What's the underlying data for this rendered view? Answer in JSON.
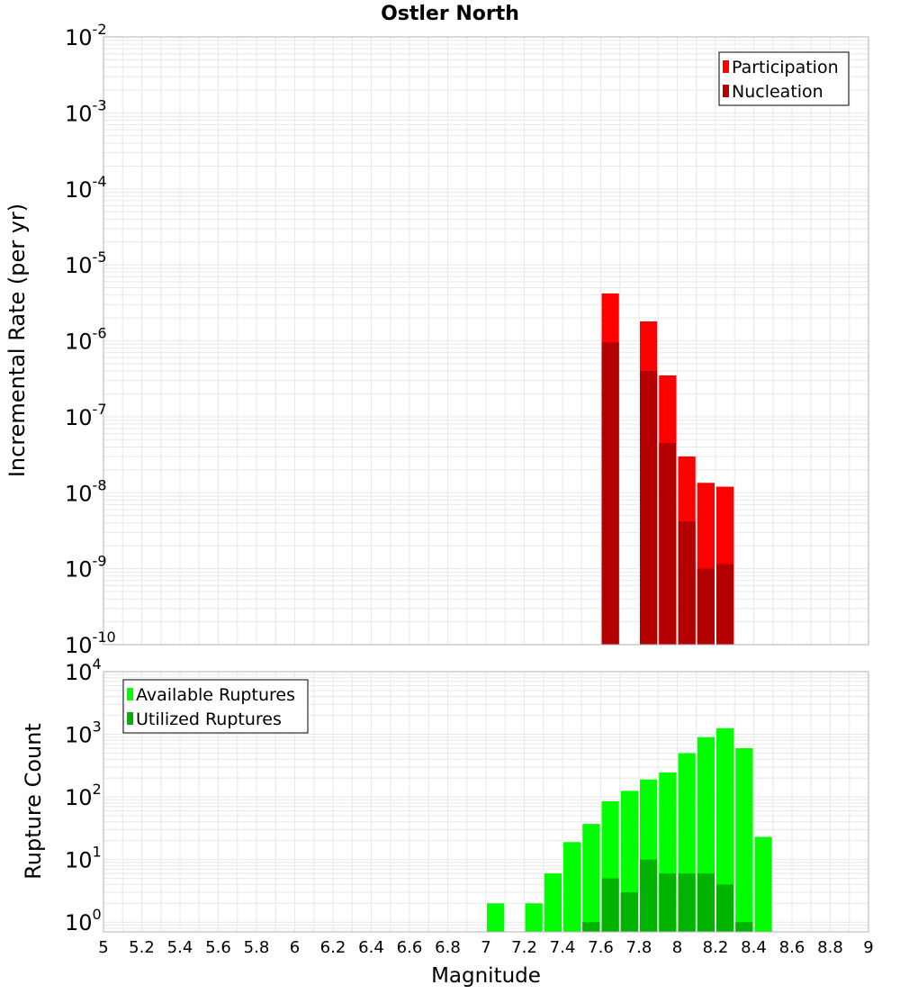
{
  "title": "Ostler North",
  "colors": {
    "participation": "#ff0000",
    "nucleation": "#b30000",
    "available": "#00ff00",
    "utilized": "#00b300",
    "grid": "#e8e8e8",
    "frame": "#b0b0b0"
  },
  "chart_data": [
    {
      "type": "bar",
      "title": "Ostler North",
      "xlabel": "",
      "ylabel": "Incremental Rate (per yr)",
      "yscale": "log",
      "ylim": [
        1e-10,
        0.01
      ],
      "xlim": [
        5,
        9
      ],
      "grid": true,
      "legend_position": "top-right",
      "y_ticks": [
        {
          "base": "10",
          "exp": "-10"
        },
        {
          "base": "10",
          "exp": "-9"
        },
        {
          "base": "10",
          "exp": "-8"
        },
        {
          "base": "10",
          "exp": "-7"
        },
        {
          "base": "10",
          "exp": "-6"
        },
        {
          "base": "10",
          "exp": "-5"
        },
        {
          "base": "10",
          "exp": "-4"
        },
        {
          "base": "10",
          "exp": "-3"
        },
        {
          "base": "10",
          "exp": "-2"
        }
      ],
      "series": [
        {
          "name": "Participation",
          "x": [
            7.65,
            7.85,
            7.95,
            8.05,
            8.15,
            8.25
          ],
          "values": [
            4.2e-06,
            1.8e-06,
            3.5e-07,
            3e-08,
            1.35e-08,
            1.2e-08
          ]
        },
        {
          "name": "Nucleation",
          "x": [
            7.65,
            7.85,
            7.95,
            8.05,
            8.15,
            8.25
          ],
          "values": [
            9.5e-07,
            4e-07,
            4.5e-08,
            4.2e-09,
            1e-09,
            1.15e-09
          ]
        }
      ]
    },
    {
      "type": "bar",
      "xlabel": "Magnitude",
      "ylabel": "Rupture Count",
      "yscale": "log",
      "ylim": [
        0.7,
        10000
      ],
      "xlim": [
        5,
        9
      ],
      "grid": true,
      "legend_position": "top-left",
      "x_ticks": [
        "5",
        "5.2",
        "5.4",
        "5.6",
        "5.8",
        "6",
        "6.2",
        "6.4",
        "6.6",
        "6.8",
        "7",
        "7.2",
        "7.4",
        "7.6",
        "7.8",
        "8",
        "8.2",
        "8.4",
        "8.6",
        "8.8",
        "9"
      ],
      "y_ticks": [
        {
          "base": "10",
          "exp": "0"
        },
        {
          "base": "10",
          "exp": "1"
        },
        {
          "base": "10",
          "exp": "2"
        },
        {
          "base": "10",
          "exp": "3"
        },
        {
          "base": "10",
          "exp": "4"
        }
      ],
      "series": [
        {
          "name": "Available Ruptures",
          "x": [
            7.05,
            7.25,
            7.35,
            7.45,
            7.55,
            7.65,
            7.75,
            7.85,
            7.95,
            8.05,
            8.15,
            8.25,
            8.35,
            8.45
          ],
          "values": [
            2,
            2,
            6,
            19,
            37,
            85,
            125,
            190,
            245,
            500,
            900,
            1250,
            600,
            23
          ]
        },
        {
          "name": "Utilized Ruptures",
          "x": [
            7.55,
            7.65,
            7.75,
            7.85,
            7.95,
            8.05,
            8.15,
            8.25,
            8.35
          ],
          "values": [
            1,
            5,
            3,
            10,
            6,
            6,
            6,
            4,
            1
          ]
        }
      ]
    }
  ]
}
